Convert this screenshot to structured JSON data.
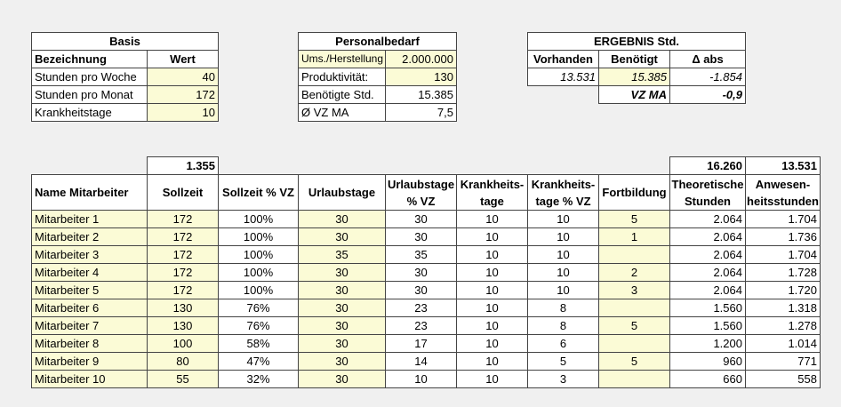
{
  "basis": {
    "title": "Basis",
    "header": [
      "Bezeichnung",
      "Wert"
    ],
    "rows": [
      [
        "Stunden pro Woche",
        "40"
      ],
      [
        "Stunden pro Monat",
        "172"
      ],
      [
        "Krankheitstage",
        "10"
      ]
    ]
  },
  "personalbedarf": {
    "title": "Personalbedarf",
    "rows": [
      [
        "Ums./Herstellung",
        "2.000.000"
      ],
      [
        "Produktivität:",
        "130"
      ],
      [
        "Benötigte Std.",
        "15.385"
      ],
      [
        "Ø VZ MA",
        "7,5"
      ]
    ]
  },
  "ergebnis": {
    "title": "ERGEBNIS Std.",
    "header": [
      "Vorhanden",
      "Benötigt",
      "Δ abs"
    ],
    "values": [
      "13.531",
      "15.385",
      "-1.854"
    ],
    "vz": [
      "VZ MA",
      "-0,9"
    ]
  },
  "mitarbeiter": {
    "totals": {
      "sollzeit": "1.355",
      "theoretische": "16.260",
      "anwesenheit": "13.531"
    },
    "header": [
      "Name Mitarbeiter",
      "Sollzeit",
      "Sollzeit % VZ",
      "Urlaubstage",
      "Urlaubstage\n% VZ",
      "Krankheits-\ntage",
      "Krankheits-\ntage % VZ",
      "Fortbildung",
      "Theoretische\nStunden",
      "Anwesen-\nheitsstunden"
    ],
    "rows": [
      [
        "Mitarbeiter 1",
        "172",
        "100%",
        "30",
        "30",
        "10",
        "10",
        "5",
        "2.064",
        "1.704"
      ],
      [
        "Mitarbeiter 2",
        "172",
        "100%",
        "30",
        "30",
        "10",
        "10",
        "1",
        "2.064",
        "1.736"
      ],
      [
        "Mitarbeiter 3",
        "172",
        "100%",
        "35",
        "35",
        "10",
        "10",
        null,
        "2.064",
        "1.704"
      ],
      [
        "Mitarbeiter 4",
        "172",
        "100%",
        "30",
        "30",
        "10",
        "10",
        "2",
        "2.064",
        "1.728"
      ],
      [
        "Mitarbeiter 5",
        "172",
        "100%",
        "30",
        "30",
        "10",
        "10",
        "3",
        "2.064",
        "1.720"
      ],
      [
        "Mitarbeiter 6",
        "130",
        "76%",
        "30",
        "23",
        "10",
        "8",
        null,
        "1.560",
        "1.318"
      ],
      [
        "Mitarbeiter 7",
        "130",
        "76%",
        "30",
        "23",
        "10",
        "8",
        "5",
        "1.560",
        "1.278"
      ],
      [
        "Mitarbeiter 8",
        "100",
        "58%",
        "30",
        "17",
        "10",
        "6",
        null,
        "1.200",
        "1.014"
      ],
      [
        "Mitarbeiter 9",
        "80",
        "47%",
        "30",
        "14",
        "10",
        "5",
        "5",
        "960",
        "771"
      ],
      [
        "Mitarbeiter 10",
        "55",
        "32%",
        "30",
        "10",
        "10",
        "3",
        null,
        "660",
        "558"
      ]
    ]
  }
}
